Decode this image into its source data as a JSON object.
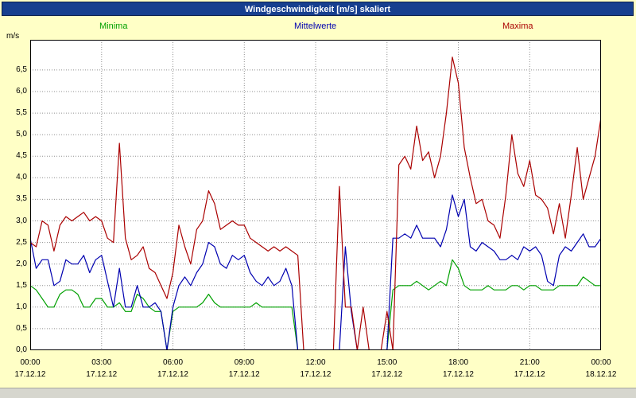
{
  "window": {
    "title": "Windgeschwindigkeit [m/s] skaliert"
  },
  "unit_label": "m/s",
  "colors": {
    "window_bg": "#ffffc6",
    "titlebar_bg": "#173f8f",
    "titlebar_text": "#ffffff",
    "plot_bg": "#ffffff",
    "plot_border": "#000000",
    "grid": "#909090",
    "minima": "#00a000",
    "mittelwerte": "#0000b0",
    "maxima": "#aa0000"
  },
  "chart_data": {
    "type": "line",
    "title": "Windgeschwindigkeit [m/s] skaliert",
    "xlabel": "",
    "ylabel": "m/s",
    "ylim": [
      0,
      7.2
    ],
    "grid": "dotted",
    "legend_position": "top",
    "x_axis": {
      "start": "00:00 17.12.12",
      "end": "00:00 18.12.12",
      "tick_interval_hours": 3,
      "sample_interval_minutes": 15
    },
    "y_ticks": [
      {
        "value": 0.0,
        "label": "0,0"
      },
      {
        "value": 0.5,
        "label": "0,5"
      },
      {
        "value": 1.0,
        "label": "1,0"
      },
      {
        "value": 1.5,
        "label": "1,5"
      },
      {
        "value": 2.0,
        "label": "2,0"
      },
      {
        "value": 2.5,
        "label": "2,5"
      },
      {
        "value": 3.0,
        "label": "3,0"
      },
      {
        "value": 3.5,
        "label": "3,5"
      },
      {
        "value": 4.0,
        "label": "4,0"
      },
      {
        "value": 4.5,
        "label": "4,5"
      },
      {
        "value": 5.0,
        "label": "5,0"
      },
      {
        "value": 5.5,
        "label": "5,5"
      },
      {
        "value": 6.0,
        "label": "6,0"
      },
      {
        "value": 6.5,
        "label": "6,5"
      }
    ],
    "x_ticks": [
      {
        "hour": 0,
        "time": "00:00",
        "date": "17.12.12"
      },
      {
        "hour": 3,
        "time": "03:00",
        "date": "17.12.12"
      },
      {
        "hour": 6,
        "time": "06:00",
        "date": "17.12.12"
      },
      {
        "hour": 9,
        "time": "09:00",
        "date": "17.12.12"
      },
      {
        "hour": 12,
        "time": "12:00",
        "date": "17.12.12"
      },
      {
        "hour": 15,
        "time": "15:00",
        "date": "17.12.12"
      },
      {
        "hour": 18,
        "time": "18:00",
        "date": "17.12.12"
      },
      {
        "hour": 21,
        "time": "21:00",
        "date": "17.12.12"
      },
      {
        "hour": 24,
        "time": "00:00",
        "date": "18.12.12"
      }
    ],
    "series": [
      {
        "name": "Minima",
        "color": "#00a000",
        "values": [
          1.5,
          1.4,
          1.2,
          1.0,
          1.0,
          1.3,
          1.4,
          1.4,
          1.3,
          1.0,
          1.0,
          1.2,
          1.2,
          1.0,
          1.0,
          1.1,
          0.9,
          0.9,
          1.3,
          1.2,
          1.0,
          0.9,
          0.9,
          0.0,
          0.9,
          1.0,
          1.0,
          1.0,
          1.0,
          1.1,
          1.3,
          1.1,
          1.0,
          1.0,
          1.0,
          1.0,
          1.0,
          1.0,
          1.1,
          1.0,
          1.0,
          1.0,
          1.0,
          1.0,
          1.0,
          0.0,
          0.0,
          0.0,
          0.0,
          0.0,
          0.0,
          0.0,
          0.0,
          0.0,
          0.0,
          0.0,
          0.0,
          0.0,
          0.0,
          0.0,
          0.0,
          1.4,
          1.5,
          1.5,
          1.5,
          1.6,
          1.5,
          1.4,
          1.5,
          1.6,
          1.5,
          2.1,
          1.9,
          1.5,
          1.4,
          1.4,
          1.4,
          1.5,
          1.4,
          1.4,
          1.4,
          1.5,
          1.5,
          1.4,
          1.5,
          1.5,
          1.4,
          1.4,
          1.4,
          1.5,
          1.5,
          1.5,
          1.5,
          1.7,
          1.6,
          1.5,
          1.5
        ]
      },
      {
        "name": "Mittelwerte",
        "color": "#0000b0",
        "values": [
          2.6,
          1.9,
          2.1,
          2.1,
          1.5,
          1.6,
          2.1,
          2.0,
          2.0,
          2.2,
          1.8,
          2.1,
          2.2,
          1.6,
          1.0,
          1.9,
          1.0,
          1.0,
          1.5,
          1.0,
          1.0,
          1.1,
          0.9,
          0.0,
          1.0,
          1.5,
          1.7,
          1.5,
          1.8,
          2.0,
          2.5,
          2.4,
          2.0,
          1.9,
          2.2,
          2.1,
          2.2,
          1.8,
          1.6,
          1.5,
          1.7,
          1.5,
          1.6,
          1.9,
          1.5,
          0.0,
          0.0,
          0.0,
          0.0,
          0.0,
          0.0,
          0.0,
          0.0,
          2.4,
          0.9,
          0.0,
          0.0,
          0.0,
          0.0,
          0.0,
          0.0,
          2.6,
          2.6,
          2.7,
          2.6,
          2.9,
          2.6,
          2.6,
          2.6,
          2.4,
          2.8,
          3.6,
          3.1,
          3.5,
          2.4,
          2.3,
          2.5,
          2.4,
          2.3,
          2.1,
          2.1,
          2.2,
          2.1,
          2.4,
          2.3,
          2.4,
          2.2,
          1.6,
          1.5,
          2.2,
          2.4,
          2.3,
          2.5,
          2.7,
          2.4,
          2.4,
          2.6
        ]
      },
      {
        "name": "Maxima",
        "color": "#aa0000",
        "values": [
          2.5,
          2.4,
          3.0,
          2.9,
          2.3,
          2.9,
          3.1,
          3.0,
          3.1,
          3.2,
          3.0,
          3.1,
          3.0,
          2.6,
          2.5,
          4.8,
          2.6,
          2.1,
          2.2,
          2.4,
          1.9,
          1.8,
          1.5,
          1.2,
          1.8,
          2.9,
          2.4,
          2.0,
          2.8,
          3.0,
          3.7,
          3.4,
          2.8,
          2.9,
          3.0,
          2.9,
          2.9,
          2.6,
          2.5,
          2.4,
          2.3,
          2.4,
          2.3,
          2.4,
          2.3,
          2.2,
          0.0,
          0.0,
          0.0,
          0.0,
          0.0,
          0.0,
          3.8,
          1.0,
          1.0,
          0.0,
          1.0,
          0.0,
          0.0,
          0.0,
          0.9,
          0.0,
          4.3,
          4.5,
          4.2,
          5.2,
          4.4,
          4.6,
          4.0,
          4.5,
          5.5,
          6.8,
          6.2,
          4.7,
          4.0,
          3.4,
          3.5,
          3.0,
          2.9,
          2.6,
          3.6,
          5.0,
          4.1,
          3.8,
          4.4,
          3.6,
          3.5,
          3.3,
          2.7,
          3.4,
          2.6,
          3.6,
          4.7,
          3.5,
          4.0,
          4.5,
          5.4
        ]
      }
    ]
  }
}
